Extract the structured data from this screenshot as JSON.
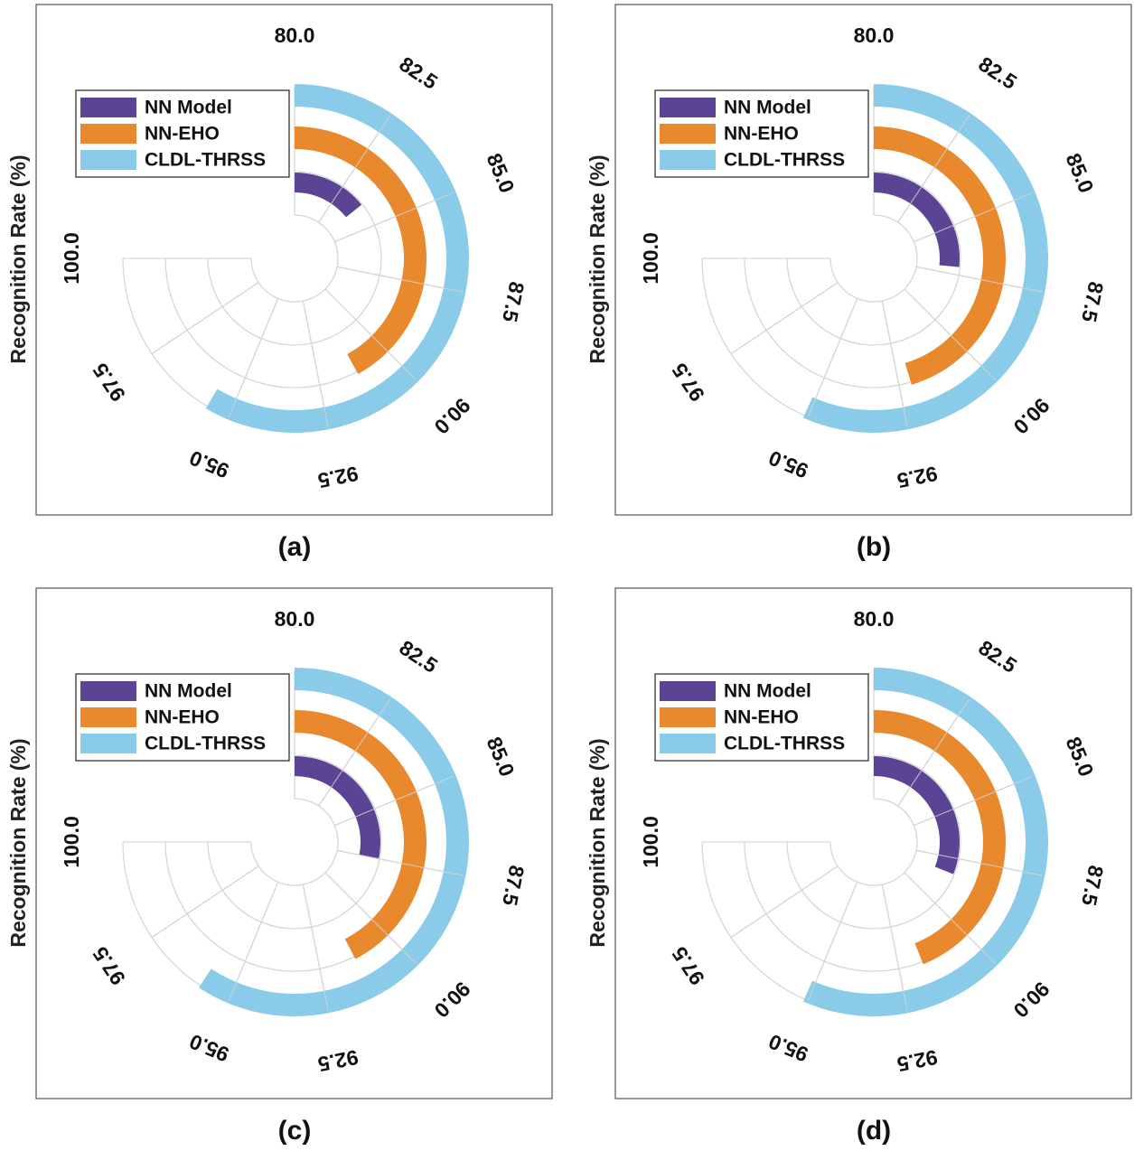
{
  "chart_data": [
    {
      "type": "radial-bar",
      "panel_label": "(a)",
      "ylabel": "Recognition Rate (%)",
      "theta_range": [
        80.0,
        100.0
      ],
      "theta_ticks": [
        "80.0",
        "82.5",
        "85.0",
        "87.5",
        "90.0",
        "92.5",
        "95.0",
        "97.5",
        "100.0"
      ],
      "legend": [
        "NN Model",
        "NN-EHO",
        "CLDL-THRSS"
      ],
      "series": [
        {
          "name": "NN Model",
          "value": 83.8
        },
        {
          "name": "NN-EHO",
          "value": 91.2
        },
        {
          "name": "CLDL-THRSS",
          "value": 95.6
        }
      ]
    },
    {
      "type": "radial-bar",
      "panel_label": "(b)",
      "ylabel": "Recognition Rate (%)",
      "theta_range": [
        80.0,
        100.0
      ],
      "theta_ticks": [
        "80.0",
        "82.5",
        "85.0",
        "87.5",
        "90.0",
        "92.5",
        "95.0",
        "97.5",
        "100.0"
      ],
      "legend": [
        "NN Model",
        "NN-EHO",
        "CLDL-THRSS"
      ],
      "series": [
        {
          "name": "NN Model",
          "value": 87.1
        },
        {
          "name": "NN-EHO",
          "value": 92.1
        },
        {
          "name": "CLDL-THRSS",
          "value": 95.1
        }
      ]
    },
    {
      "type": "radial-bar",
      "panel_label": "(c)",
      "ylabel": "Recognition Rate (%)",
      "theta_range": [
        80.0,
        100.0
      ],
      "theta_ticks": [
        "80.0",
        "82.5",
        "85.0",
        "87.5",
        "90.0",
        "92.5",
        "95.0",
        "97.5",
        "100.0"
      ],
      "legend": [
        "NN Model",
        "NN-EHO",
        "CLDL-THRSS"
      ],
      "series": [
        {
          "name": "NN Model",
          "value": 87.5
        },
        {
          "name": "NN-EHO",
          "value": 91.3
        },
        {
          "name": "CLDL-THRSS",
          "value": 95.8
        }
      ]
    },
    {
      "type": "radial-bar",
      "panel_label": "(d)",
      "ylabel": "Recognition Rate (%)",
      "theta_range": [
        80.0,
        100.0
      ],
      "theta_ticks": [
        "80.0",
        "82.5",
        "85.0",
        "87.5",
        "90.0",
        "92.5",
        "95.0",
        "97.5",
        "100.0"
      ],
      "legend": [
        "NN Model",
        "NN-EHO",
        "CLDL-THRSS"
      ],
      "series": [
        {
          "name": "NN Model",
          "value": 88.3
        },
        {
          "name": "NN-EHO",
          "value": 91.7
        },
        {
          "name": "CLDL-THRSS",
          "value": 95.1
        }
      ]
    }
  ],
  "colors": {
    "NN Model": "#5c4494",
    "NN-EHO": "#e8892e",
    "CLDL-THRSS": "#89cbe8"
  }
}
